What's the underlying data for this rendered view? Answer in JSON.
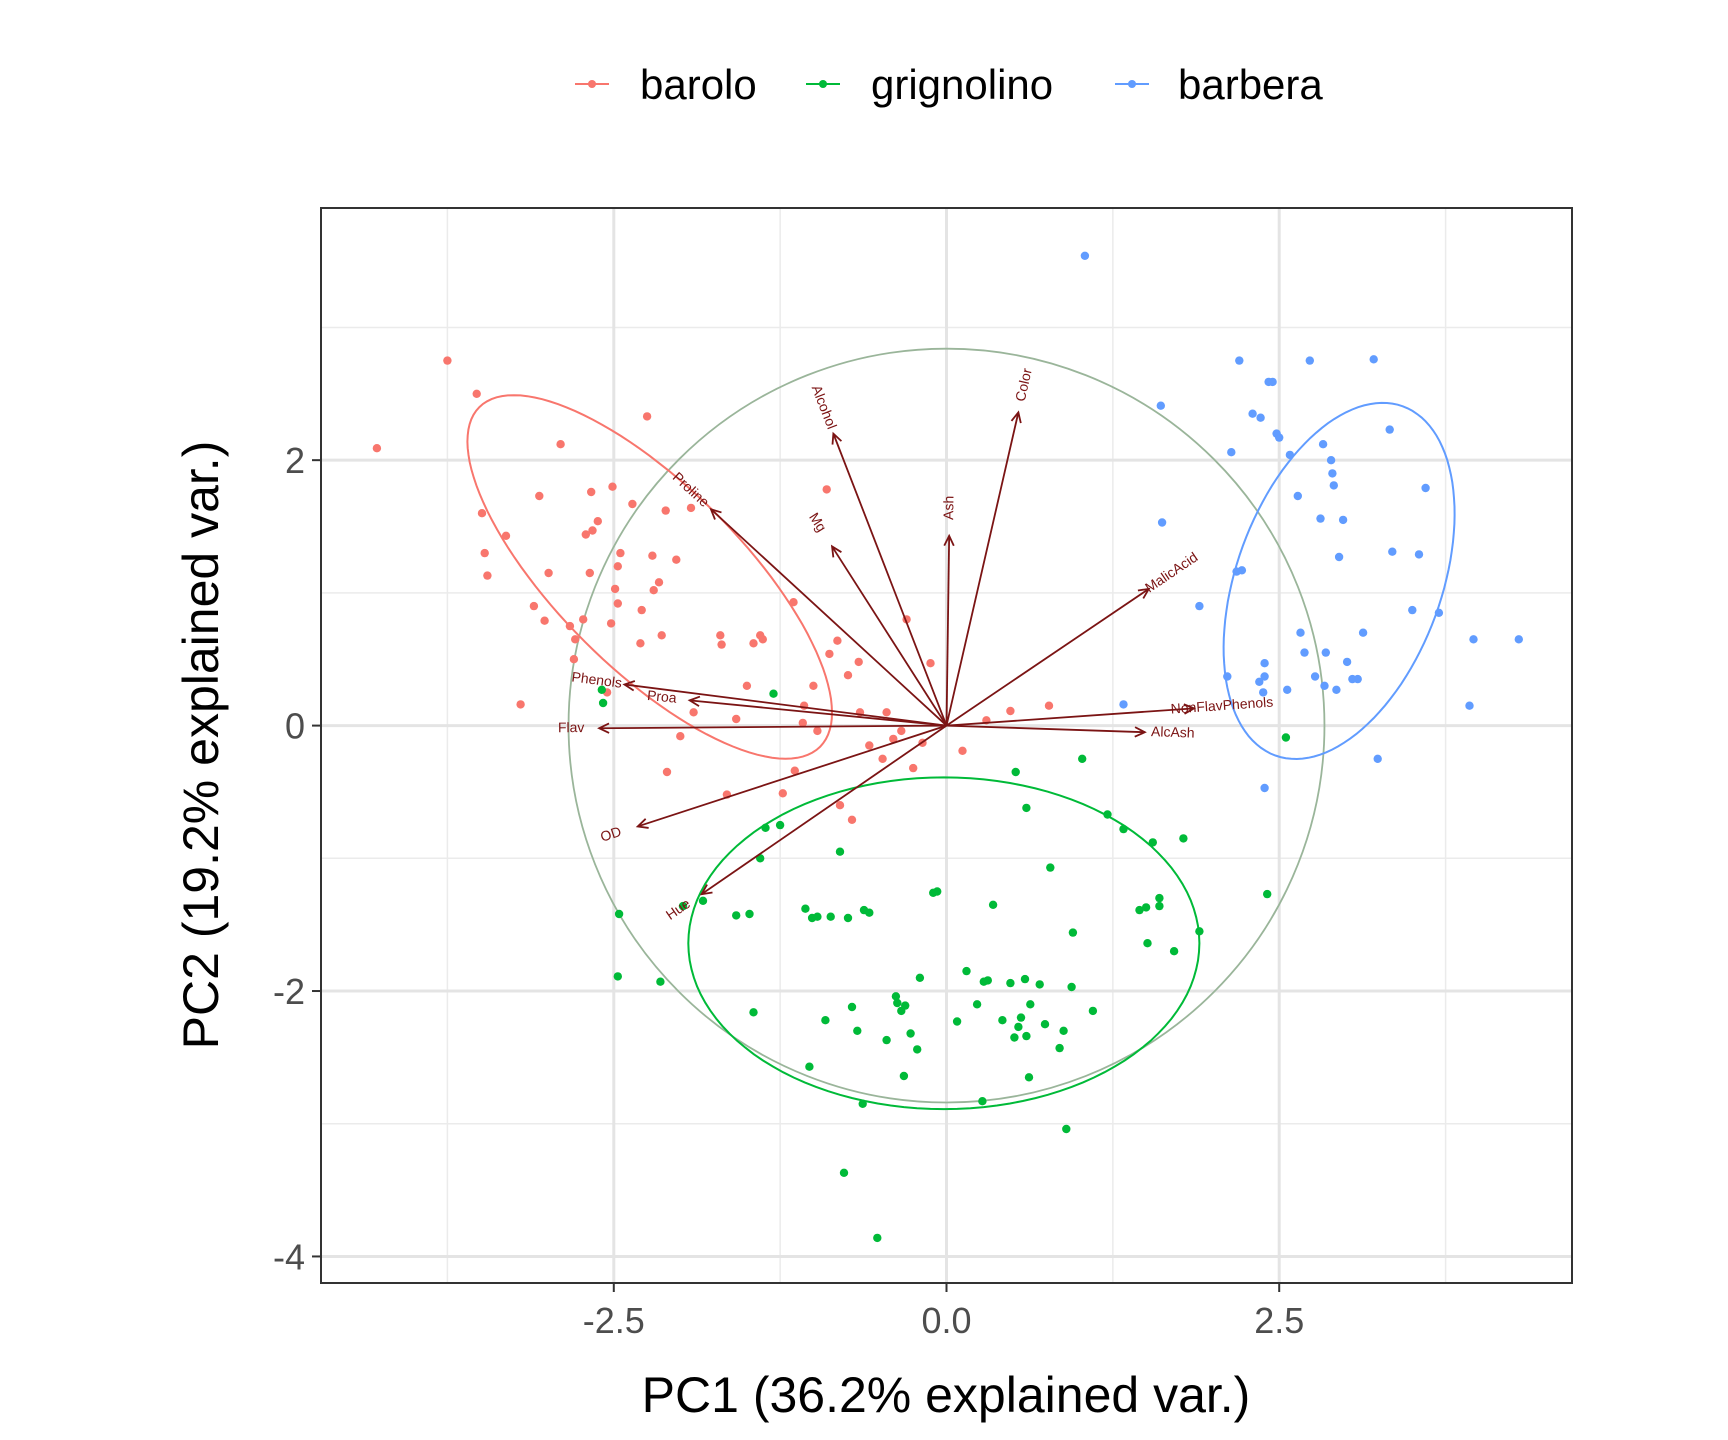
{
  "chart_data": {
    "type": "scatter",
    "title": "",
    "xlabel": "PC1 (36.2% explained var.)",
    "ylabel": "PC2 (19.2% explained var.)",
    "xlim": [
      -4.7,
      4.7
    ],
    "ylim": [
      -4.2,
      3.9
    ],
    "x_ticks": [
      -2.5,
      0.0,
      2.5
    ],
    "x_tick_labels": [
      "-2.5",
      "0.0",
      "2.5"
    ],
    "y_ticks": [
      -4,
      -2,
      0,
      2
    ],
    "y_tick_labels": [
      "-4",
      "-2",
      "0",
      "2"
    ],
    "grid": true,
    "legend_position": "top",
    "series": [
      {
        "name": "barolo",
        "color": "#F8766D",
        "points": [
          [
            -4.28,
            2.09
          ],
          [
            -3.75,
            2.75
          ],
          [
            -3.53,
            2.5
          ],
          [
            -3.49,
            1.6
          ],
          [
            -3.47,
            1.3
          ],
          [
            -3.45,
            1.13
          ],
          [
            -3.31,
            1.43
          ],
          [
            -3.2,
            0.16
          ],
          [
            -3.06,
            1.73
          ],
          [
            -3.02,
            0.79
          ],
          [
            -2.99,
            1.15
          ],
          [
            -2.9,
            2.12
          ],
          [
            -2.83,
            0.75
          ],
          [
            -2.79,
            0.65
          ],
          [
            -2.73,
            0.8
          ],
          [
            -2.71,
            1.44
          ],
          [
            -2.68,
            1.15
          ],
          [
            -2.67,
            1.76
          ],
          [
            -2.66,
            1.47
          ],
          [
            -2.62,
            1.54
          ],
          [
            -2.52,
            0.77
          ],
          [
            -2.51,
            1.8
          ],
          [
            -2.49,
            1.03
          ],
          [
            -2.47,
            0.92
          ],
          [
            -2.47,
            1.2
          ],
          [
            -2.45,
            1.3
          ],
          [
            -2.36,
            1.67
          ],
          [
            -2.29,
            0.87
          ],
          [
            -2.25,
            2.33
          ],
          [
            -2.21,
            1.28
          ],
          [
            -2.2,
            1.02
          ],
          [
            -2.16,
            1.08
          ],
          [
            -2.14,
            0.68
          ],
          [
            -2.11,
            1.62
          ],
          [
            -2.03,
            1.25
          ],
          [
            -1.92,
            1.64
          ],
          [
            -1.7,
            0.68
          ],
          [
            -1.69,
            0.61
          ],
          [
            -1.58,
            0.05
          ],
          [
            -1.4,
            0.68
          ],
          [
            -1.38,
            0.65
          ],
          [
            -1.23,
            -0.51
          ],
          [
            -1.14,
            -0.34
          ],
          [
            -1.08,
            0.02
          ],
          [
            -1.07,
            0.15
          ],
          [
            -0.97,
            -0.04
          ],
          [
            -0.88,
            0.54
          ],
          [
            -0.82,
            0.64
          ],
          [
            -0.74,
            0.38
          ],
          [
            -0.71,
            -0.71
          ],
          [
            -0.66,
            0.48
          ],
          [
            -0.58,
            -0.15
          ],
          [
            -0.48,
            -0.25
          ],
          [
            -0.45,
            0.1
          ],
          [
            -0.34,
            -0.04
          ],
          [
            -0.18,
            -0.13
          ],
          [
            0.12,
            -0.19
          ],
          [
            0.3,
            0.04
          ],
          [
            0.48,
            0.11
          ],
          [
            0.77,
            0.15
          ],
          [
            -0.12,
            0.47
          ],
          [
            -0.25,
            -0.32
          ],
          [
            -0.8,
            -0.6
          ],
          [
            -1.5,
            0.3
          ],
          [
            -1.9,
            0.1
          ],
          [
            -2.8,
            0.5
          ],
          [
            -0.9,
            1.78
          ],
          [
            -1.15,
            0.93
          ],
          [
            -1.45,
            0.62
          ],
          [
            -2.3,
            0.62
          ],
          [
            -3.1,
            0.9
          ],
          [
            -2.0,
            -0.08
          ],
          [
            -1.65,
            -0.52
          ],
          [
            -2.1,
            -0.35
          ],
          [
            -0.65,
            0.1
          ],
          [
            -0.3,
            0.8
          ],
          [
            -1.0,
            0.3
          ],
          [
            -0.4,
            -0.1
          ],
          [
            -2.55,
            0.25
          ]
        ]
      },
      {
        "name": "grignolino",
        "color": "#00BA38",
        "points": [
          [
            -2.59,
            0.27
          ],
          [
            -2.58,
            0.17
          ],
          [
            -2.46,
            -1.42
          ],
          [
            -2.47,
            -1.89
          ],
          [
            -2.15,
            -1.93
          ],
          [
            -1.98,
            -1.36
          ],
          [
            -1.83,
            -1.32
          ],
          [
            -1.58,
            -1.43
          ],
          [
            -1.48,
            -1.42
          ],
          [
            -1.45,
            -2.16
          ],
          [
            -1.36,
            -0.77
          ],
          [
            -1.3,
            0.24
          ],
          [
            -1.25,
            -0.75
          ],
          [
            -1.06,
            -1.38
          ],
          [
            -1.03,
            -2.57
          ],
          [
            -1.01,
            -1.45
          ],
          [
            -0.97,
            -1.44
          ],
          [
            -0.91,
            -2.22
          ],
          [
            -0.87,
            -1.44
          ],
          [
            -0.8,
            -0.95
          ],
          [
            -0.74,
            -1.45
          ],
          [
            -0.71,
            -2.12
          ],
          [
            -0.67,
            -2.3
          ],
          [
            -0.62,
            -1.39
          ],
          [
            -0.58,
            -1.41
          ],
          [
            -0.45,
            -2.37
          ],
          [
            -0.38,
            -2.04
          ],
          [
            -0.37,
            -2.09
          ],
          [
            -0.34,
            -2.15
          ],
          [
            -0.32,
            -2.64
          ],
          [
            -0.31,
            -2.11
          ],
          [
            -0.27,
            -2.32
          ],
          [
            -0.22,
            -2.44
          ],
          [
            -0.1,
            -1.26
          ],
          [
            -0.07,
            -1.25
          ],
          [
            0.08,
            -2.23
          ],
          [
            0.15,
            -1.85
          ],
          [
            0.23,
            -2.1
          ],
          [
            0.27,
            -2.83
          ],
          [
            0.28,
            -1.93
          ],
          [
            0.31,
            -1.92
          ],
          [
            0.42,
            -2.22
          ],
          [
            0.48,
            -1.94
          ],
          [
            0.51,
            -2.35
          ],
          [
            0.54,
            -2.27
          ],
          [
            0.56,
            -2.2
          ],
          [
            0.59,
            -1.91
          ],
          [
            0.6,
            -2.34
          ],
          [
            0.62,
            -2.65
          ],
          [
            0.63,
            -2.1
          ],
          [
            0.7,
            -1.95
          ],
          [
            0.74,
            -2.25
          ],
          [
            0.78,
            -1.07
          ],
          [
            0.85,
            -2.43
          ],
          [
            0.88,
            -2.3
          ],
          [
            0.9,
            -3.04
          ],
          [
            0.94,
            -1.97
          ],
          [
            1.02,
            -0.25
          ],
          [
            1.1,
            -2.15
          ],
          [
            1.21,
            -0.67
          ],
          [
            1.33,
            -0.78
          ],
          [
            1.45,
            -1.39
          ],
          [
            1.5,
            -1.37
          ],
          [
            1.51,
            -1.64
          ],
          [
            1.55,
            -0.88
          ],
          [
            1.6,
            -1.36
          ],
          [
            1.6,
            -1.3
          ],
          [
            1.71,
            -1.7
          ],
          [
            1.78,
            -0.85
          ],
          [
            1.9,
            -1.55
          ],
          [
            2.41,
            -1.27
          ],
          [
            2.55,
            -0.09
          ],
          [
            -0.52,
            -3.86
          ],
          [
            -0.77,
            -3.37
          ],
          [
            -0.63,
            -2.85
          ],
          [
            0.6,
            -0.62
          ],
          [
            0.52,
            -0.35
          ],
          [
            0.35,
            -1.35
          ],
          [
            -1.4,
            -1.0
          ],
          [
            -0.2,
            -1.9
          ],
          [
            0.95,
            -1.56
          ]
        ]
      },
      {
        "name": "barbera",
        "color": "#619CFF",
        "points": [
          [
            1.04,
            3.54
          ],
          [
            1.33,
            0.16
          ],
          [
            1.61,
            2.41
          ],
          [
            1.62,
            1.53
          ],
          [
            2.11,
            0.37
          ],
          [
            2.14,
            2.06
          ],
          [
            2.18,
            1.16
          ],
          [
            2.22,
            1.17
          ],
          [
            2.3,
            2.35
          ],
          [
            2.35,
            0.33
          ],
          [
            2.36,
            2.32
          ],
          [
            2.38,
            0.25
          ],
          [
            2.39,
            0.47
          ],
          [
            2.39,
            0.37
          ],
          [
            2.39,
            -0.47
          ],
          [
            2.42,
            2.59
          ],
          [
            2.45,
            2.59
          ],
          [
            2.48,
            2.2
          ],
          [
            2.5,
            2.17
          ],
          [
            2.56,
            0.27
          ],
          [
            2.58,
            2.04
          ],
          [
            2.64,
            1.73
          ],
          [
            2.66,
            0.7
          ],
          [
            2.69,
            0.55
          ],
          [
            2.73,
            2.75
          ],
          [
            2.77,
            0.37
          ],
          [
            2.81,
            1.56
          ],
          [
            2.83,
            2.12
          ],
          [
            2.84,
            0.3
          ],
          [
            2.85,
            0.55
          ],
          [
            2.89,
            2.0
          ],
          [
            2.91,
            1.81
          ],
          [
            2.93,
            0.27
          ],
          [
            2.95,
            1.27
          ],
          [
            2.98,
            1.55
          ],
          [
            3.01,
            0.48
          ],
          [
            3.05,
            0.35
          ],
          [
            3.09,
            0.35
          ],
          [
            3.13,
            0.7
          ],
          [
            3.21,
            2.76
          ],
          [
            3.24,
            -0.25
          ],
          [
            3.33,
            2.23
          ],
          [
            3.35,
            1.31
          ],
          [
            3.5,
            0.87
          ],
          [
            3.55,
            1.29
          ],
          [
            3.6,
            1.79
          ],
          [
            3.7,
            0.85
          ],
          [
            3.93,
            0.15
          ],
          [
            3.96,
            0.65
          ],
          [
            4.3,
            0.65
          ],
          [
            2.2,
            2.75
          ],
          [
            2.9,
            1.9
          ],
          [
            1.9,
            0.9
          ]
        ]
      }
    ],
    "ellipses": [
      {
        "group": "barolo",
        "color": "#F8766D",
        "cx": -2.23,
        "cy": 1.12,
        "rx": 1.81,
        "ry": 0.69,
        "angle_deg": -45
      },
      {
        "group": "grignolino",
        "color": "#00BA38",
        "cx": -0.02,
        "cy": -1.64,
        "rx": 1.92,
        "ry": 1.25,
        "angle_deg": 0
      },
      {
        "group": "barbera",
        "color": "#619CFF",
        "cx": 2.95,
        "cy": 1.09,
        "rx": 1.4,
        "ry": 0.77,
        "angle_deg": 70
      }
    ],
    "correlation_circle": {
      "cx": 0,
      "cy": 0,
      "r": 2.84,
      "color": "#9ab59a"
    },
    "loadings": [
      {
        "name": "Alcohol",
        "x": -0.85,
        "y": 2.2
      },
      {
        "name": "MalicAcid",
        "x": 1.52,
        "y": 1.03
      },
      {
        "name": "Ash",
        "x": 0.02,
        "y": 1.43
      },
      {
        "name": "AlcAsh",
        "x": 1.49,
        "y": -0.05
      },
      {
        "name": "Mg",
        "x": -0.86,
        "y": 1.35
      },
      {
        "name": "Phenols",
        "x": -2.42,
        "y": 0.31
      },
      {
        "name": "Flav",
        "x": -2.61,
        "y": -0.02
      },
      {
        "name": "NonFlavPhenols",
        "x": 1.86,
        "y": 0.13
      },
      {
        "name": "Proa",
        "x": -1.93,
        "y": 0.19
      },
      {
        "name": "Color",
        "x": 0.54,
        "y": 2.36
      },
      {
        "name": "Hue",
        "x": -1.84,
        "y": -1.27
      },
      {
        "name": "OD",
        "x": -2.32,
        "y": -0.76
      },
      {
        "name": "Proline",
        "x": -1.77,
        "y": 1.63
      }
    ],
    "loading_color": "#7b1414"
  }
}
